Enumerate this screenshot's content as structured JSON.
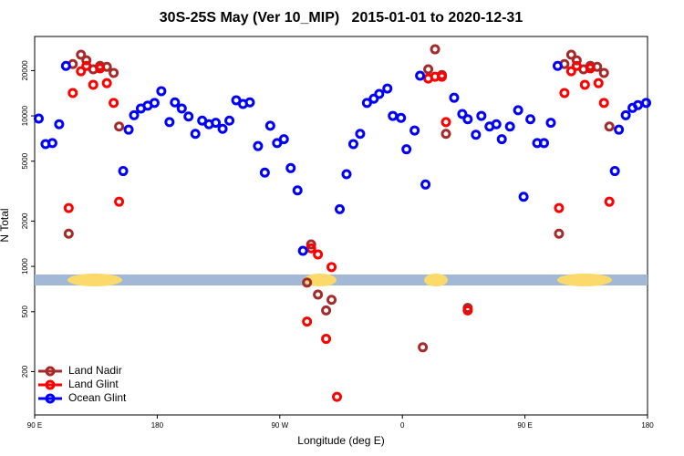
{
  "chart_data": {
    "type": "scatter",
    "title": "30S-25S May (Ver 10_MIP)   2015-01-01 to 2020-12-31",
    "xlabel": "Longitude (deg E)",
    "ylabel": "N Total",
    "xlim": [
      90,
      540
    ],
    "xticks": [
      {
        "value": 90,
        "label": "90 E"
      },
      {
        "value": 180,
        "label": "180"
      },
      {
        "value": 270,
        "label": "90 W"
      },
      {
        "value": 360,
        "label": "0"
      },
      {
        "value": 450,
        "label": "90 E"
      },
      {
        "value": 540,
        "label": "180"
      }
    ],
    "ylim": [
      103,
      33700
    ],
    "ylog": true,
    "yticks": [
      200,
      500,
      1000,
      2000,
      5000,
      10000,
      20000
    ],
    "legend": "bottom-left",
    "series": [
      {
        "name": "Land Nadir",
        "color": "#a52a2a",
        "x": [
          115,
          118,
          124,
          128,
          133,
          138,
          143,
          148,
          152,
          290,
          293,
          298,
          304,
          308,
          375,
          379,
          384,
          389,
          392,
          408,
          475,
          479,
          484,
          488,
          493,
          498,
          503,
          508,
          512
        ],
        "values": [
          1650,
          22100,
          25500,
          23400,
          20400,
          21500,
          21200,
          19300,
          8500,
          780,
          1400,
          650,
          510,
          600,
          290,
          20400,
          27700,
          18700,
          7600,
          530,
          1650,
          22100,
          25500,
          23400,
          20400,
          21500,
          21200,
          19300,
          8500
        ]
      },
      {
        "name": "Land Glint",
        "color": "#ff0000",
        "x": [
          115,
          118,
          124,
          128,
          133,
          138,
          143,
          148,
          152,
          290,
          293,
          298,
          304,
          308,
          312,
          379,
          384,
          389,
          392,
          408,
          475,
          479,
          484,
          488,
          494,
          498,
          504,
          508,
          512
        ],
        "values": [
          2440,
          14200,
          19800,
          21500,
          16100,
          20700,
          16500,
          12200,
          2690,
          430,
          1320,
          1200,
          330,
          990,
          136,
          17700,
          18200,
          18200,
          9100,
          510,
          2440,
          14200,
          19800,
          21500,
          16100,
          20700,
          16500,
          12200,
          2690
        ]
      },
      {
        "name": "Ocean Glint",
        "color": "#0000ff",
        "x": [
          93,
          98,
          103,
          108,
          113,
          155,
          159,
          163,
          168,
          173,
          178,
          183,
          189,
          193,
          198,
          203,
          208,
          213,
          218,
          223,
          228,
          233,
          238,
          243,
          248,
          254,
          259,
          263,
          268,
          273,
          278,
          283,
          287,
          314,
          319,
          324,
          329,
          334,
          339,
          343,
          349,
          353,
          359,
          363,
          369,
          373,
          377,
          398,
          404,
          408,
          414,
          418,
          424,
          429,
          433,
          439,
          445,
          449,
          454,
          459,
          464,
          469,
          474,
          516,
          519,
          524,
          529,
          533,
          539
        ],
        "values": [
          9600,
          6500,
          6600,
          8800,
          21500,
          4300,
          8100,
          10100,
          11200,
          11700,
          12200,
          14600,
          9100,
          12300,
          11200,
          9900,
          7600,
          9300,
          8800,
          9000,
          8200,
          9300,
          12700,
          12000,
          12300,
          6300,
          4200,
          8600,
          6600,
          7000,
          4500,
          3200,
          1270,
          2400,
          4100,
          6500,
          7600,
          12200,
          13000,
          14000,
          15200,
          10000,
          9700,
          6000,
          8000,
          18500,
          3500,
          13200,
          10300,
          9500,
          7500,
          10000,
          8500,
          8800,
          7000,
          8500,
          10900,
          2900,
          9500,
          6600,
          6600,
          9000,
          21500,
          4300,
          8100,
          10100,
          11300,
          11800,
          12200
        ]
      }
    ]
  }
}
